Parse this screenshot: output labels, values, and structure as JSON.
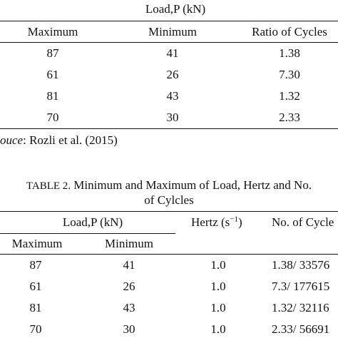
{
  "table1": {
    "group_header": "Load,P (kN)",
    "columns": [
      "Maximum",
      "Minimum",
      "Ratio of Cycles"
    ],
    "rows": [
      [
        "87",
        "41",
        "1.38"
      ],
      [
        "61",
        "26",
        "7.30"
      ],
      [
        "81",
        "43",
        "1.32"
      ],
      [
        "70",
        "30",
        "2.33"
      ]
    ],
    "source_label": "ouce",
    "source_text": ": Rozli et al. (2015)"
  },
  "table2": {
    "caption_label": "TABLE 2.",
    "caption_line1": " Minimum and Maximum of Load, Hertz and No.",
    "caption_line2": "of Cylcles",
    "group_header": "Load,P (kN)",
    "hertz_header": "Hertz (s",
    "hertz_sup": "−1",
    "hertz_close": ")",
    "cycles_header": "No. of Cycle",
    "subcolumns": [
      "Maximum",
      "Minimum"
    ],
    "rows": [
      [
        "87",
        "41",
        "1.0",
        "1.38/ 33576"
      ],
      [
        "61",
        "26",
        "1.0",
        "7.3/ 177615"
      ],
      [
        "81",
        "43",
        "1.0",
        "1.32/ 32116"
      ],
      [
        "70",
        "30",
        "1.0",
        "2.33/ 56691"
      ]
    ]
  }
}
